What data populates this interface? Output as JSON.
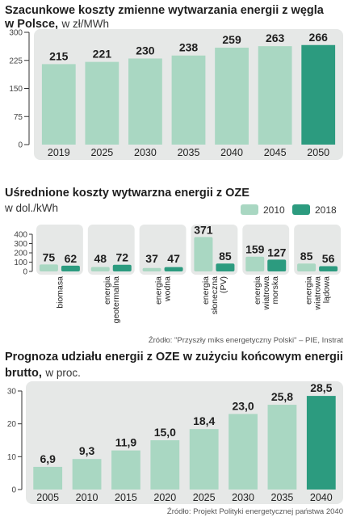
{
  "colors": {
    "bar_light": "#a9d7c2",
    "bar_dark": "#2c9b7f",
    "band": "#e6e8e7",
    "axis": "#333333"
  },
  "chart_data": [
    {
      "type": "bar",
      "title": "Szacunkowe koszty zmienne wytwarzania energii z węgla",
      "title2": "w Polsce,",
      "unit": "w zł/MWh",
      "categories": [
        "2019",
        "2025",
        "2030",
        "2035",
        "2040",
        "2045",
        "2050"
      ],
      "values": [
        215,
        221,
        230,
        238,
        259,
        263,
        266
      ],
      "ylim": [
        0,
        300
      ],
      "yticks": [
        0,
        75,
        150,
        225,
        300
      ],
      "highlight_last": true
    },
    {
      "type": "bar",
      "title": "Uśrednione koszty wytwarzna energii z OZE",
      "unit": "w dol./kWh",
      "categories": [
        [
          "biomasa"
        ],
        [
          "energia",
          "geotermalna"
        ],
        [
          "energia",
          "wodna"
        ],
        [
          "energia",
          "słoneczna",
          "(PV)"
        ],
        [
          "energia",
          "wiatrowa",
          "morska"
        ],
        [
          "energia",
          "wiatrowa",
          "lądowa"
        ]
      ],
      "series": [
        {
          "name": "2010",
          "values": [
            75,
            48,
            37,
            371,
            159,
            85
          ]
        },
        {
          "name": "2018",
          "values": [
            62,
            72,
            47,
            85,
            127,
            56
          ]
        }
      ],
      "ylim": [
        0,
        400
      ],
      "yticks": [
        0,
        100,
        200,
        300,
        400
      ],
      "legend_position": "top-right",
      "source": "Źródło: \"Przyszły miks energetyczny Polski\" – PIE, Instrat"
    },
    {
      "type": "bar",
      "title": "Prognoza udziału energii z OZE w zużyciu końcowym energii",
      "title2": "brutto,",
      "unit": "w proc.",
      "categories": [
        "2005",
        "2010",
        "2015",
        "2020",
        "2025",
        "2030",
        "2035",
        "2040"
      ],
      "values": [
        6.9,
        9.3,
        11.9,
        15.0,
        18.4,
        23.0,
        25.8,
        28.5
      ],
      "value_labels": [
        "6,9",
        "9,3",
        "11,9",
        "15,0",
        "18,4",
        "23,0",
        "25,8",
        "28,5"
      ],
      "ylim": [
        0,
        30
      ],
      "yticks": [
        0,
        10,
        20,
        30
      ],
      "highlight_last": true,
      "source": "Źródło: Projekt Polityki energetycznej państwa 2040"
    }
  ]
}
